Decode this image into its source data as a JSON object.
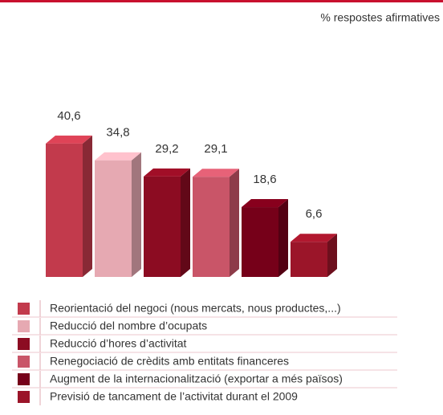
{
  "chart_data": {
    "type": "bar3d",
    "subtitle": "% respostes afirmatives",
    "categories": [
      "Reorientació del negoci (nous mercats, nous productes,...)",
      "Reducció del nombre d’ocupats",
      "Reducció d’hores d’activitat",
      "Renegociació de crèdits amb entitats financeres",
      "Augment de la internacionalització (exportar a més països)",
      "Previsió de tancament de l’activitat durant el 2009"
    ],
    "values": [
      40.6,
      34.8,
      29.2,
      29.1,
      18.6,
      6.6
    ],
    "value_labels": [
      "40,6",
      "34,8",
      "29,2",
      "29,1",
      "18,6",
      "6,6"
    ],
    "colors": [
      "#c23a4c",
      "#e6a9b2",
      "#8c0c22",
      "#c95568",
      "#760019",
      "#9b1529"
    ]
  }
}
